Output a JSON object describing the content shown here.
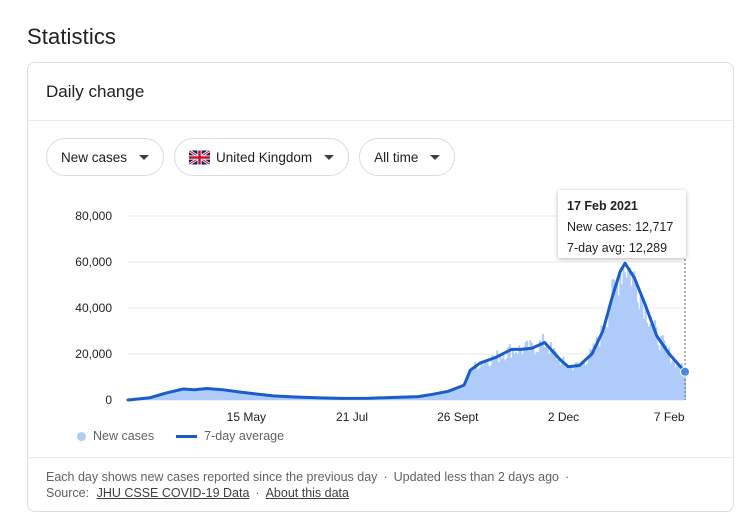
{
  "page": {
    "title": "Statistics"
  },
  "card": {
    "title": "Daily change"
  },
  "filters": [
    {
      "label": "New cases"
    },
    {
      "label": "United Kingdom",
      "flag": "uk-flag-icon"
    },
    {
      "label": "All time"
    }
  ],
  "tooltip": {
    "date": "17 Feb 2021",
    "new_cases": "New cases: 12,717",
    "avg": "7-day avg: 12,289"
  },
  "legend": {
    "bars": "New cases",
    "line": "7-day average"
  },
  "footer": {
    "line1_a": "Each day shows new cases reported since the previous day",
    "line1_b": "Updated less than 2 days ago",
    "source_label": "Source:",
    "source_link": "JHU CSSE COVID-19 Data",
    "about_link": "About this data",
    "sep": "·"
  },
  "colors": {
    "bars": "#aecbfa",
    "line": "#1a5dc8",
    "grid": "#e8eaed",
    "text": "#202124"
  },
  "chart_data": {
    "type": "area",
    "x_type": "date",
    "x_range": [
      "2020-03-01",
      "2021-02-17"
    ],
    "ylim": [
      0,
      80000
    ],
    "y_ticks": [
      0,
      20000,
      40000,
      60000,
      80000
    ],
    "y_tick_labels": [
      "0",
      "20,000",
      "40,000",
      "60,000",
      "80,000"
    ],
    "x_ticks": [
      "2020-05-15",
      "2020-07-21",
      "2020-09-26",
      "2020-12-02",
      "2021-02-07"
    ],
    "x_tick_labels": [
      "15 May",
      "21 Jul",
      "26 Sept",
      "2 Dec",
      "7 Feb"
    ],
    "grid": true,
    "series": [
      {
        "name": "7-day average",
        "x": [
          "2020-03-01",
          "2020-03-15",
          "2020-03-25",
          "2020-04-05",
          "2020-04-12",
          "2020-04-20",
          "2020-04-30",
          "2020-05-10",
          "2020-05-20",
          "2020-06-01",
          "2020-06-15",
          "2020-07-01",
          "2020-07-15",
          "2020-08-01",
          "2020-08-15",
          "2020-09-01",
          "2020-09-10",
          "2020-09-20",
          "2020-09-30",
          "2020-10-04",
          "2020-10-10",
          "2020-10-20",
          "2020-10-30",
          "2020-11-05",
          "2020-11-12",
          "2020-11-20",
          "2020-11-30",
          "2020-12-05",
          "2020-12-12",
          "2020-12-20",
          "2020-12-27",
          "2021-01-02",
          "2021-01-07",
          "2021-01-10",
          "2021-01-16",
          "2021-01-23",
          "2021-01-30",
          "2021-02-07",
          "2021-02-17"
        ],
        "values": [
          0,
          1000,
          3000,
          4800,
          4500,
          5000,
          4500,
          3500,
          2700,
          1800,
          1300,
          900,
          700,
          800,
          1100,
          1500,
          2500,
          3800,
          6500,
          13000,
          16000,
          18500,
          22000,
          22000,
          22500,
          25000,
          17500,
          14500,
          15000,
          20000,
          30000,
          45000,
          56000,
          59500,
          53000,
          41000,
          28000,
          20000,
          12289
        ]
      }
    ],
    "bars_series": {
      "name": "New cases",
      "note": "daily bars track the 7-day average with noise",
      "highlight": {
        "date": "2021-02-17",
        "new_cases": 12717,
        "avg": 12289
      }
    }
  }
}
